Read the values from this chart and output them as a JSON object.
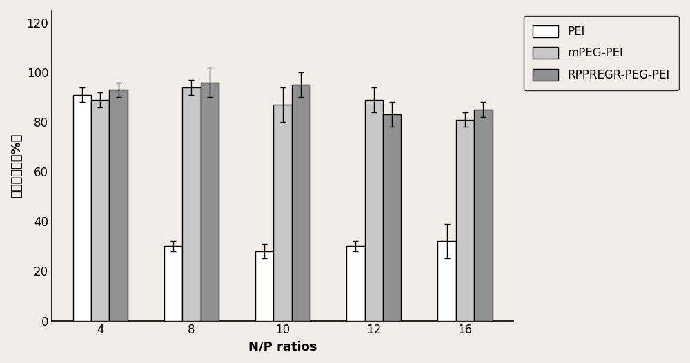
{
  "categories": [
    "4",
    "8",
    "10",
    "12",
    "16"
  ],
  "series": {
    "PEI": {
      "values": [
        91,
        30,
        28,
        30,
        32
      ],
      "errors": [
        3,
        2,
        3,
        2,
        7
      ],
      "facecolor": "white",
      "edgecolor": "black"
    },
    "mPEG-PEI": {
      "values": [
        89,
        94,
        87,
        89,
        81
      ],
      "errors": [
        3,
        3,
        7,
        5,
        3
      ],
      "facecolor": "#c8c8c8",
      "edgecolor": "black"
    },
    "RPPREGR-PEG-PEI": {
      "values": [
        93,
        96,
        95,
        83,
        85
      ],
      "errors": [
        3,
        6,
        5,
        5,
        3
      ],
      "facecolor": "#909090",
      "edgecolor": "black"
    }
  },
  "ylabel": "细胞存活率（%）",
  "xlabel": "N/P ratios",
  "ylim": [
    0,
    125
  ],
  "yticks": [
    0,
    20,
    40,
    60,
    80,
    100,
    120
  ],
  "background_color": "#f0ece8",
  "bar_width": 0.2,
  "legend_labels": [
    "PEI",
    "mPEG-PEI",
    "RPPREGR-PEG-PEI"
  ],
  "legend_facecolors": [
    "white",
    "#c8c8c8",
    "#909090"
  ],
  "axis_fontsize": 13,
  "tick_fontsize": 12,
  "legend_fontsize": 12
}
